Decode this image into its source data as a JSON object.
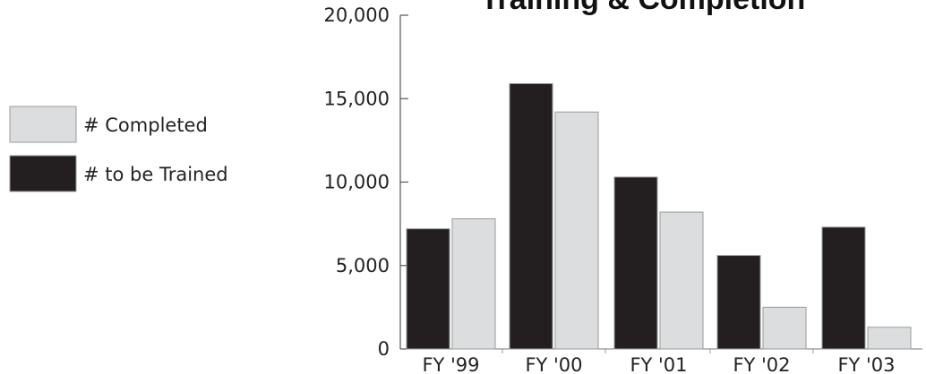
{
  "chart_data": {
    "type": "bar",
    "title": "Training & Completion",
    "xlabel": "",
    "ylabel": "",
    "categories": [
      "FY '99",
      "FY '00",
      "FY '01",
      "FY '02",
      "FY '03"
    ],
    "series": [
      {
        "name": "# to be Trained",
        "color": "#231f20",
        "values": [
          7200,
          15900,
          10300,
          5600,
          7300
        ]
      },
      {
        "name": "# Completed",
        "color": "#dcdddf",
        "values": [
          7800,
          14200,
          8200,
          2500,
          1300
        ]
      }
    ],
    "ylim": [
      0,
      20000
    ],
    "yticks": [
      0,
      5000,
      10000,
      15000,
      20000
    ],
    "ytick_labels": [
      "0",
      "5,000",
      "10,000",
      "15,000",
      "20,000"
    ],
    "grid": false,
    "legend_position": "left",
    "legend": [
      {
        "label": "# Completed",
        "color": "#dcdddf"
      },
      {
        "label": "# to be Trained",
        "color": "#231f20"
      }
    ]
  }
}
